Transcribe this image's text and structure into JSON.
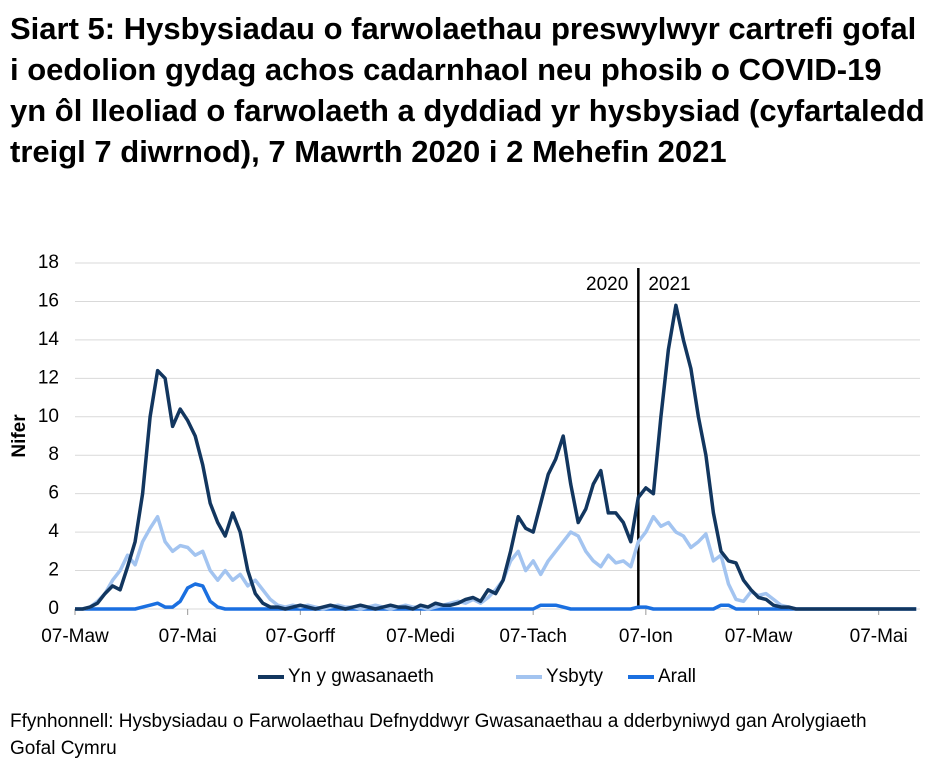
{
  "chart_data": {
    "type": "line",
    "title": "Siart 5: Hysbysiadau o farwolaethau preswylwyr cartrefi gofal i oedolion gydag achos cadarnhaol neu phosib o COVID-19 yn ôl lleoliad o farwolaeth a dyddiad yr hysbysiad (cyfartaledd treigl 7 diwrnod), 7 Mawrth 2020 i 2 Mehefin 2021",
    "y_label": "Nifer",
    "source": "Ffynhonnell: Hysbysiadau o Farwolaethau Defnyddwyr Gwasanaethau a dderbyniwyd gan Arolygiaeth Gofal Cymru",
    "annotations": [
      "2020",
      "2021"
    ],
    "categories": [
      "07-Maw",
      null,
      null,
      null,
      null,
      null,
      null,
      null,
      null,
      null,
      null,
      null,
      null,
      null,
      null,
      "07-Mai",
      null,
      null,
      null,
      null,
      null,
      null,
      null,
      null,
      null,
      null,
      null,
      null,
      null,
      null,
      "07-Gorff",
      null,
      null,
      null,
      null,
      null,
      null,
      null,
      null,
      null,
      null,
      null,
      null,
      null,
      null,
      null,
      "07-Medi",
      null,
      null,
      null,
      null,
      null,
      null,
      null,
      null,
      null,
      null,
      null,
      null,
      null,
      null,
      "07-Tach",
      null,
      null,
      null,
      null,
      null,
      null,
      null,
      null,
      null,
      null,
      null,
      null,
      null,
      null,
      "07-Ion",
      null,
      null,
      null,
      null,
      null,
      null,
      null,
      null,
      null,
      null,
      null,
      null,
      null,
      null,
      "07-Maw",
      null,
      null,
      null,
      null,
      null,
      null,
      null,
      null,
      null,
      null,
      null,
      null,
      null,
      null,
      null,
      "07-Mai",
      null,
      null,
      null,
      null,
      null
    ],
    "series": [
      {
        "name": "Yn y gwasanaeth",
        "color": "#12365f",
        "values": [
          0,
          0,
          0.1,
          0.3,
          0.8,
          1.2,
          1,
          2.2,
          3.5,
          6,
          10,
          12.4,
          12,
          9.5,
          10.4,
          9.8,
          9,
          7.5,
          5.5,
          4.5,
          3.8,
          5,
          4,
          2,
          0.8,
          0.3,
          0.1,
          0.1,
          0,
          0.1,
          0.2,
          0.1,
          0,
          0.1,
          0.2,
          0.1,
          0,
          0.1,
          0.2,
          0.1,
          0,
          0.1,
          0.2,
          0.1,
          0.1,
          0,
          0.2,
          0.1,
          0.3,
          0.2,
          0.2,
          0.3,
          0.5,
          0.6,
          0.4,
          1,
          0.8,
          1.5,
          3,
          4.8,
          4.2,
          4,
          5.5,
          7,
          7.8,
          9,
          6.5,
          4.5,
          5.2,
          6.5,
          7.2,
          5,
          5,
          4.5,
          3.5,
          5.8,
          6.3,
          6,
          10,
          13.5,
          15.8,
          14,
          12.5,
          10,
          8,
          5,
          3,
          2.5,
          2.4,
          1.5,
          1,
          0.6,
          0.5,
          0.2,
          0.1,
          0.1,
          0,
          0,
          0,
          0,
          0,
          0,
          0,
          0,
          0,
          0,
          0,
          0,
          0,
          0,
          0,
          0,
          0
        ]
      },
      {
        "name": "Ysbyty",
        "color": "#a3c4f0",
        "values": [
          0,
          0,
          0.1,
          0.4,
          0.8,
          1.5,
          2,
          2.8,
          2.3,
          3.5,
          4.2,
          4.8,
          3.5,
          3,
          3.3,
          3.2,
          2.8,
          3,
          2,
          1.5,
          2,
          1.5,
          1.8,
          1.2,
          1.5,
          1,
          0.5,
          0.2,
          0.1,
          0.2,
          0.1,
          0.2,
          0.1,
          0,
          0.1,
          0.2,
          0.1,
          0.1,
          0,
          0.1,
          0.2,
          0.1,
          0,
          0.1,
          0.2,
          0.1,
          0.1,
          0,
          0.1,
          0.2,
          0.3,
          0.4,
          0.3,
          0.5,
          0.3,
          0.6,
          1,
          1.5,
          2.5,
          3,
          2,
          2.5,
          1.8,
          2.5,
          3,
          3.5,
          4,
          3.8,
          3,
          2.5,
          2.2,
          2.8,
          2.4,
          2.5,
          2.2,
          3.5,
          4,
          4.8,
          4.3,
          4.5,
          4,
          3.8,
          3.2,
          3.5,
          3.9,
          2.5,
          2.8,
          1.3,
          0.5,
          0.4,
          0.9,
          0.7,
          0.8,
          0.5,
          0.2,
          0.1,
          0,
          0,
          0,
          0,
          0,
          0,
          0,
          0,
          0,
          0,
          0,
          0,
          0,
          0,
          0,
          0,
          0
        ]
      },
      {
        "name": "Arall",
        "color": "#1a6fe0",
        "values": [
          0,
          0,
          0,
          0,
          0,
          0,
          0,
          0,
          0,
          0.1,
          0.2,
          0.3,
          0.1,
          0.1,
          0.4,
          1.1,
          1.3,
          1.2,
          0.4,
          0.1,
          0,
          0,
          0,
          0,
          0,
          0,
          0,
          0,
          0,
          0,
          0,
          0,
          0,
          0,
          0,
          0,
          0,
          0,
          0,
          0,
          0,
          0,
          0,
          0,
          0,
          0,
          0,
          0,
          0,
          0,
          0,
          0,
          0,
          0,
          0,
          0,
          0,
          0,
          0,
          0,
          0,
          0,
          0.2,
          0.2,
          0.2,
          0.1,
          0,
          0,
          0,
          0,
          0,
          0,
          0,
          0,
          0,
          0.1,
          0.1,
          0,
          0,
          0,
          0,
          0,
          0,
          0,
          0,
          0,
          0.2,
          0.2,
          0,
          0,
          0,
          0,
          0,
          0,
          0,
          0,
          0,
          0,
          0,
          0,
          0,
          0,
          0,
          0,
          0,
          0,
          0,
          0,
          0,
          0,
          0,
          0,
          0
        ]
      }
    ],
    "ylim": [
      0,
      18
    ],
    "yticks": [
      0,
      2,
      4,
      6,
      8,
      10,
      12,
      14,
      16,
      18
    ],
    "grid": true,
    "legend": "bottom"
  }
}
